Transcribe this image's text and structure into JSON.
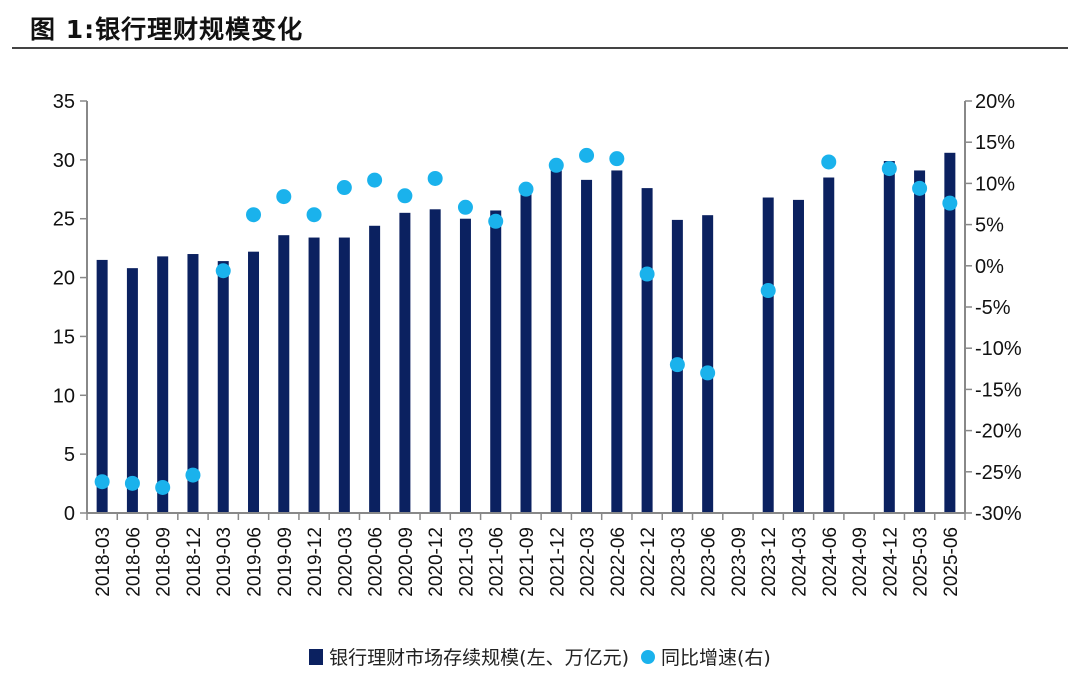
{
  "header": {
    "title": "图 1:银行理财规模变化"
  },
  "colors": {
    "bar": "#0b2160",
    "dot": "#1ab2ec",
    "axis": "#888888"
  },
  "chart_data": {
    "type": "bar",
    "title": "银行理财规模变化",
    "categories": [
      "2018-03",
      "2018-06",
      "2018-09",
      "2018-12",
      "2019-03",
      "2019-06",
      "2019-09",
      "2019-12",
      "2020-03",
      "2020-06",
      "2020-09",
      "2020-12",
      "2021-03",
      "2021-06",
      "2021-09",
      "2021-12",
      "2022-03",
      "2022-06",
      "2022-12",
      "2023-03",
      "2023-06",
      "2023-09",
      "2023-12",
      "2024-03",
      "2024-06",
      "2024-09",
      "2024-12",
      "2025-03",
      "2025-06"
    ],
    "series": [
      {
        "name": "银行理财市场存续规模(左、万亿元)",
        "type": "bar",
        "axis": "left",
        "values": [
          21.5,
          20.8,
          21.8,
          22.0,
          21.4,
          22.2,
          23.6,
          23.4,
          23.4,
          24.4,
          25.5,
          25.8,
          25.0,
          25.7,
          27.3,
          29.1,
          28.3,
          29.1,
          27.6,
          24.9,
          25.3,
          null,
          26.8,
          26.6,
          28.5,
          null,
          29.9,
          29.1,
          30.6
        ]
      },
      {
        "name": "同比增速(右)",
        "type": "scatter",
        "axis": "right",
        "values": [
          -26.2,
          -26.4,
          -26.9,
          -25.4,
          -0.6,
          6.2,
          8.4,
          6.2,
          9.5,
          10.4,
          8.5,
          10.6,
          7.1,
          5.4,
          9.3,
          12.2,
          13.4,
          13.0,
          -1.0,
          -12.0,
          -13.0,
          null,
          -3.0,
          null,
          12.6,
          null,
          11.8,
          9.4,
          7.6
        ]
      }
    ],
    "left_axis": {
      "ylim": [
        0,
        35
      ],
      "ticks": [
        0,
        5,
        10,
        15,
        20,
        25,
        30,
        35
      ],
      "tick_labels": [
        "0",
        "5",
        "10",
        "15",
        "20",
        "25",
        "30",
        "35"
      ]
    },
    "right_axis": {
      "ylim": [
        -30,
        20
      ],
      "ticks": [
        -30,
        -25,
        -20,
        -15,
        -10,
        -5,
        0,
        5,
        10,
        15,
        20
      ],
      "tick_labels": [
        "-30%",
        "-25%",
        "-20%",
        "-15%",
        "-10%",
        "-5%",
        "0%",
        "5%",
        "10%",
        "15%",
        "20%"
      ]
    },
    "xlabel": "",
    "grid": false,
    "legend_position": "bottom"
  },
  "legend": {
    "bar_label": "银行理财市场存续规模(左、万亿元)",
    "dot_label": "同比增速(右)"
  }
}
